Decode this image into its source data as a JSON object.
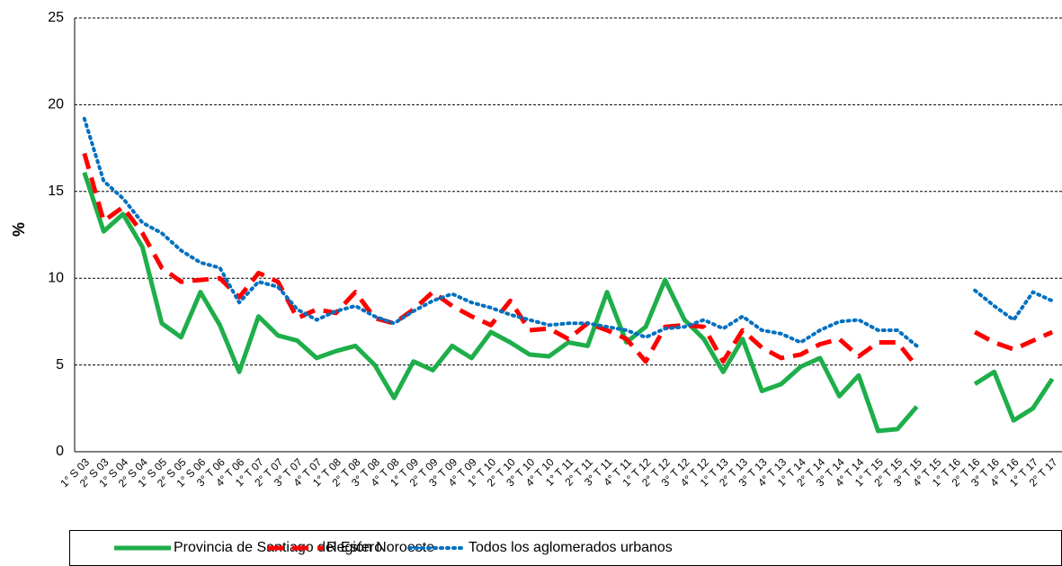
{
  "chart_data": {
    "type": "line",
    "y_label": "%",
    "categories": [
      "1° S 03",
      "2° S 03",
      "1° S 04",
      "2° S 04",
      "1° S 05",
      "2° S 05",
      "1° S 06",
      "3° T 06",
      "4° T 06",
      "1° T 07",
      "2° T 07",
      "3° T 07",
      "4° T 07",
      "1° T 08",
      "2° T 08",
      "3° T 08",
      "4° T 08",
      "1° T 09",
      "2° T 09",
      "3° T 09",
      "4° T 09",
      "1° T 10",
      "2° T 10",
      "3° T 10",
      "4° T 10",
      "1° T 11",
      "2° T 11",
      "3° T 11",
      "4° T 11",
      "1° T 12",
      "2° T 12",
      "3° T 12",
      "4° T 12",
      "1° T 13",
      "2° T 13",
      "3° T 13",
      "4° T 13",
      "1° T 14",
      "2° T 14",
      "3° T 14",
      "4° T 14",
      "1° T 15",
      "2° T 15",
      "3° T 15",
      "4° T 15",
      "1° T 16",
      "2° T 16",
      "3° T 16",
      "4° T 16",
      "1° T 17",
      "2° T 17"
    ],
    "series": [
      {
        "name": "Provincia de Santiago del Estero",
        "color": "#1eae4a",
        "style": "solid",
        "values": [
          16.1,
          12.7,
          13.7,
          11.8,
          7.4,
          6.6,
          9.2,
          7.3,
          4.6,
          7.8,
          6.7,
          6.4,
          5.4,
          5.8,
          6.1,
          5.0,
          3.1,
          5.2,
          4.7,
          6.1,
          5.4,
          6.9,
          6.3,
          5.6,
          5.5,
          6.3,
          6.1,
          9.2,
          6.3,
          7.2,
          9.9,
          7.6,
          6.5,
          4.6,
          6.5,
          3.5,
          3.9,
          4.9,
          5.4,
          3.2,
          4.4,
          1.2,
          1.3,
          2.6,
          null,
          null,
          3.9,
          4.6,
          1.8,
          2.5,
          4.2
        ]
      },
      {
        "name": "Región Noroeste",
        "color": "#ff0000",
        "style": "dashed",
        "values": [
          17.2,
          13.3,
          14.1,
          12.6,
          10.6,
          9.8,
          9.9,
          10.0,
          8.9,
          10.3,
          9.8,
          7.7,
          8.2,
          8.0,
          9.2,
          7.7,
          7.4,
          8.2,
          9.2,
          8.4,
          7.8,
          7.3,
          8.7,
          7.0,
          7.1,
          6.5,
          7.4,
          7.0,
          6.5,
          5.2,
          7.2,
          7.3,
          7.2,
          5.2,
          7.0,
          6.0,
          5.4,
          5.6,
          6.2,
          6.5,
          5.5,
          6.3,
          6.3,
          4.9,
          null,
          null,
          6.9,
          6.3,
          5.9,
          6.4,
          6.9
        ]
      },
      {
        "name": "Todos los aglomerados urbanos",
        "color": "#0070c0",
        "style": "dotted",
        "values": [
          19.2,
          15.6,
          14.6,
          13.2,
          12.6,
          11.6,
          10.9,
          10.6,
          8.6,
          9.8,
          9.5,
          8.2,
          7.6,
          8.1,
          8.4,
          7.8,
          7.4,
          8.1,
          8.7,
          9.1,
          8.6,
          8.3,
          7.9,
          7.6,
          7.3,
          7.4,
          7.4,
          7.2,
          7.0,
          6.6,
          7.1,
          7.2,
          7.6,
          7.1,
          7.8,
          7.0,
          6.8,
          6.3,
          7.0,
          7.5,
          7.6,
          7.0,
          7.0,
          6.1,
          null,
          null,
          9.3,
          8.4,
          7.6,
          9.2,
          8.7
        ]
      }
    ],
    "ylim": [
      0,
      25
    ],
    "yticks": [
      0,
      5,
      10,
      15,
      20,
      25
    ],
    "grid": true
  }
}
